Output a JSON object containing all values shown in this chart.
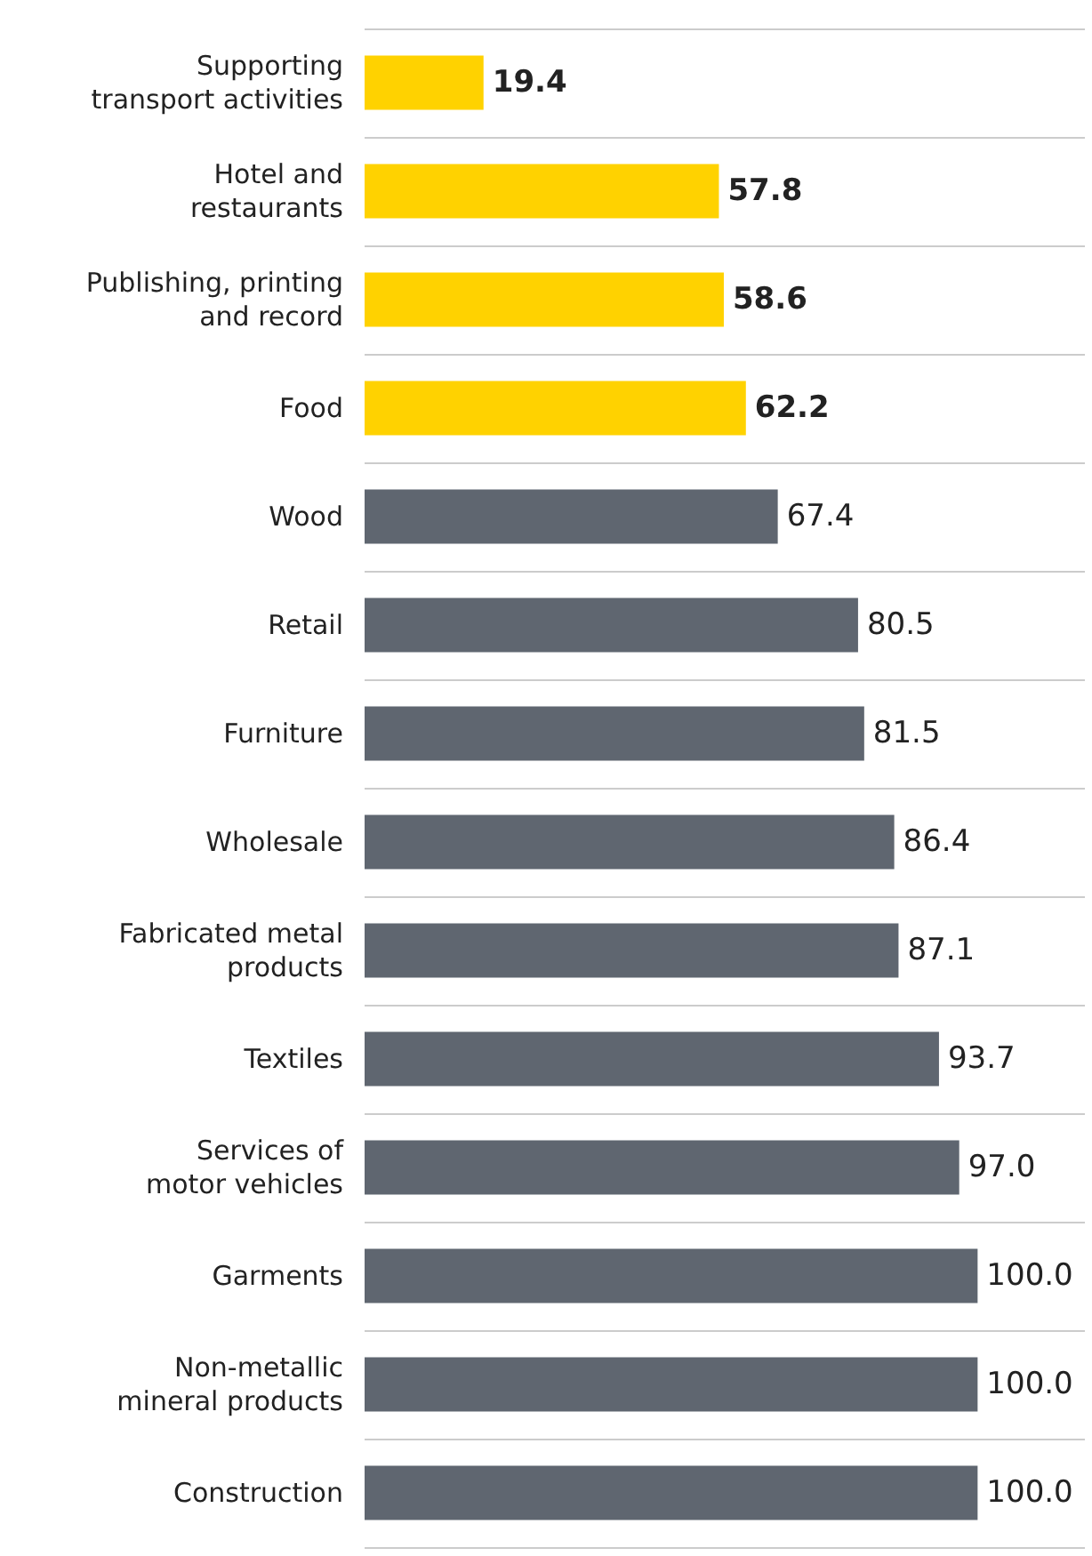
{
  "chart_data": {
    "type": "bar",
    "orientation": "horizontal",
    "categories": [
      "Supporting\ntransport activities",
      "Hotel and\nrestaurants",
      "Publishing, printing\nand record",
      "Food",
      "Wood",
      "Retail",
      "Furniture",
      "Wholesale",
      "Fabricated metal\nproducts",
      "Textiles",
      "Services of\nmotor vehicles",
      "Garments",
      "Non-metallic\nmineral products",
      "Construction"
    ],
    "values": [
      19.4,
      57.8,
      58.6,
      62.2,
      67.4,
      80.5,
      81.5,
      86.4,
      87.1,
      93.7,
      97.0,
      100.0,
      100.0,
      100.0
    ],
    "value_labels": [
      "19.4",
      "57.8",
      "58.6",
      "62.2",
      "67.4",
      "80.5",
      "81.5",
      "86.4",
      "87.1",
      "93.7",
      "97.0",
      "100.0",
      "100.0",
      "100.0"
    ],
    "colors": [
      "#ffd200",
      "#ffd200",
      "#ffd200",
      "#ffd200",
      "#5f6670",
      "#5f6670",
      "#5f6670",
      "#5f6670",
      "#5f6670",
      "#5f6670",
      "#5f6670",
      "#5f6670",
      "#5f6670",
      "#5f6670"
    ],
    "grid": "y"
  }
}
